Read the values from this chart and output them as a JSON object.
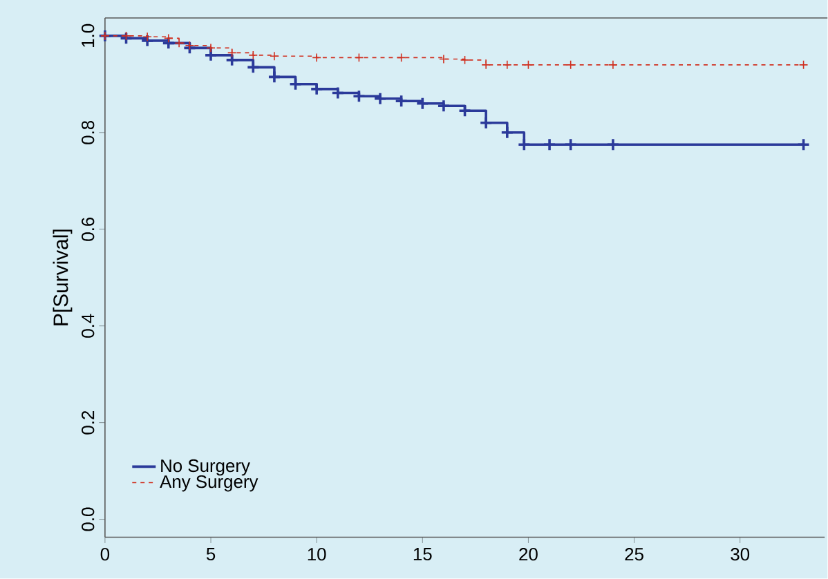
{
  "chart_data": {
    "type": "step",
    "ylabel": "P[Survival]",
    "xlim": [
      0,
      34
    ],
    "ylim": [
      -0.037,
      1.037
    ],
    "xticks": [
      0,
      5,
      10,
      15,
      20,
      25,
      30
    ],
    "yticks": [
      {
        "value": 0,
        "label": "0.0"
      },
      {
        "value": 0.2,
        "label": "0.2"
      },
      {
        "value": 0.4,
        "label": "0.4"
      },
      {
        "value": 0.6,
        "label": "0.6"
      },
      {
        "value": 0.8,
        "label": "0.8"
      },
      {
        "value": 1,
        "label": "1.0"
      }
    ],
    "grid": false,
    "legend": "bottom left",
    "marker": "cross",
    "series": [
      {
        "name": "No Surgery",
        "color": "#2b3a9a",
        "line_style": "solid",
        "x": [
          0,
          1,
          2,
          3,
          4,
          5,
          6,
          7,
          8,
          9,
          10,
          11,
          12,
          13,
          14,
          15,
          16,
          17,
          18,
          19,
          19.8,
          21,
          22,
          24,
          33
        ],
        "values": [
          1.0,
          0.995,
          0.99,
          0.985,
          0.975,
          0.96,
          0.95,
          0.935,
          0.915,
          0.9,
          0.89,
          0.882,
          0.875,
          0.87,
          0.865,
          0.86,
          0.855,
          0.845,
          0.82,
          0.8,
          0.775,
          0.775,
          0.775,
          0.775,
          0.775
        ]
      },
      {
        "name": "Any Surgery",
        "color": "#d03020",
        "line_style": "dashed",
        "x": [
          0,
          1,
          2,
          3,
          3.5,
          4,
          5,
          6,
          7,
          8,
          10,
          12,
          14,
          16,
          17,
          18,
          19,
          20,
          22,
          24,
          33
        ],
        "values": [
          1.0,
          1.0,
          0.998,
          0.995,
          0.985,
          0.98,
          0.975,
          0.965,
          0.96,
          0.958,
          0.955,
          0.955,
          0.955,
          0.952,
          0.95,
          0.94,
          0.94,
          0.94,
          0.94,
          0.94,
          0.94
        ]
      }
    ]
  }
}
